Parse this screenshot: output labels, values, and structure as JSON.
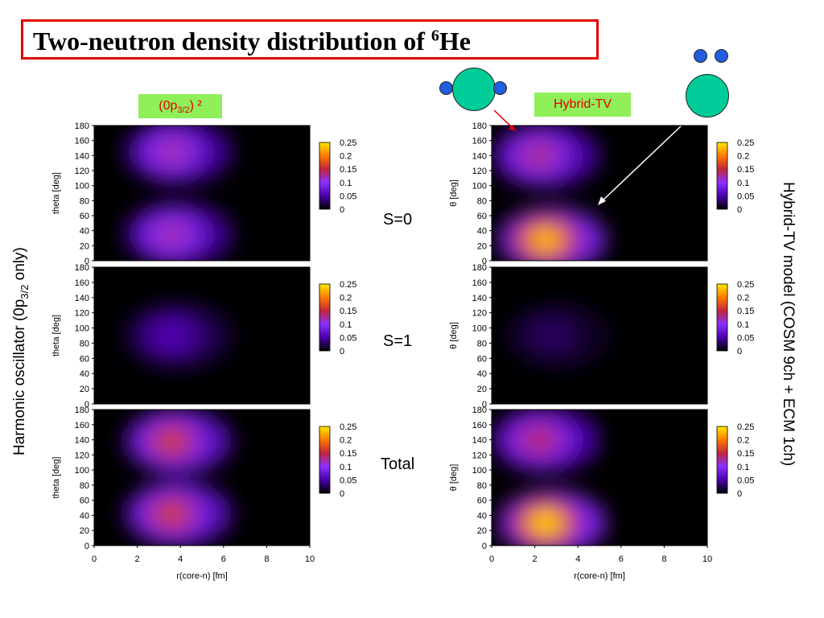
{
  "title": {
    "text": "Two-neutron density distribution of ",
    "superscript": "6",
    "element": "He"
  },
  "tags": {
    "left": {
      "prefix": "(0p",
      "sub": "3/2",
      "suffix": ") ²"
    },
    "right": "Hybrid-TV"
  },
  "state_labels": [
    "S=0",
    "S=1",
    "Total"
  ],
  "side_labels": {
    "left": {
      "prefix": "Harmonic oscillator (0p",
      "sub": "3/2",
      "suffix": " only)"
    },
    "right": "Hybrid-TV model (COSM 9ch + ECM 1ch)"
  },
  "colors": {
    "title_border": "#e00000",
    "tag_bg": "#8ff05a",
    "tag_text": "#e00000",
    "core": "#00cc99",
    "neutron": "#1f5fe0"
  },
  "chart_data": [
    {
      "type": "heatmap",
      "panel": "left-S=0",
      "ylabel": "theta [deg]",
      "xlim": [
        0,
        10
      ],
      "ylim": [
        0,
        180
      ],
      "yticks": [
        "180",
        "160",
        "140",
        "120",
        "100",
        "80",
        "60",
        "40",
        "20",
        "0"
      ],
      "xticks": [],
      "colorbar": {
        "ticks": [
          "0.25",
          "0.2",
          "0.15",
          "0.1",
          "0.05",
          "0"
        ],
        "range": [
          0,
          0.25
        ]
      },
      "peaks": [
        {
          "r": 3.6,
          "theta": 35,
          "value": 0.13
        },
        {
          "r": 3.6,
          "theta": 145,
          "value": 0.13
        }
      ]
    },
    {
      "type": "heatmap",
      "panel": "left-S=1",
      "ylabel": "theta [deg]",
      "xlim": [
        0,
        10
      ],
      "ylim": [
        0,
        180
      ],
      "yticks": [
        "180",
        "160",
        "140",
        "120",
        "100",
        "80",
        "60",
        "40",
        "20",
        "0"
      ],
      "xticks": [],
      "colorbar": {
        "ticks": [
          "0.25",
          "0.2",
          "0.15",
          "0.1",
          "0.05",
          "0"
        ],
        "range": [
          0,
          0.25
        ]
      },
      "peaks": [
        {
          "r": 3.6,
          "theta": 90,
          "value": 0.06
        }
      ]
    },
    {
      "type": "heatmap",
      "panel": "left-Total",
      "ylabel": "theta [deg]",
      "xlabel": "r(core-n) [fm]",
      "xlim": [
        0,
        10
      ],
      "ylim": [
        0,
        180
      ],
      "yticks": [
        "180",
        "160",
        "140",
        "120",
        "100",
        "80",
        "60",
        "40",
        "20",
        "0"
      ],
      "xticks": [
        "0",
        "2",
        "4",
        "6",
        "8",
        "10"
      ],
      "colorbar": {
        "ticks": [
          "0.25",
          "0.2",
          "0.15",
          "0.1",
          "0.05",
          "0"
        ],
        "range": [
          0,
          0.25
        ]
      },
      "peaks": [
        {
          "r": 3.6,
          "theta": 42,
          "value": 0.17
        },
        {
          "r": 3.6,
          "theta": 138,
          "value": 0.17
        }
      ]
    },
    {
      "type": "heatmap",
      "panel": "right-S=0",
      "ylabel": "θ [deg]",
      "xlim": [
        0,
        10
      ],
      "ylim": [
        0,
        180
      ],
      "yticks": [
        "180",
        "160",
        "140",
        "120",
        "100",
        "80",
        "60",
        "40",
        "20",
        "0"
      ],
      "xticks": [],
      "colorbar": {
        "ticks": [
          "0.25",
          "0.2",
          "0.15",
          "0.1",
          "0.05",
          "0"
        ],
        "range": [
          0,
          0.25
        ]
      },
      "peaks": [
        {
          "r": 2.5,
          "theta": 28,
          "value": 0.24
        },
        {
          "r": 2.2,
          "theta": 140,
          "value": 0.14
        }
      ]
    },
    {
      "type": "heatmap",
      "panel": "right-S=1",
      "ylabel": "θ [deg]",
      "xlim": [
        0,
        10
      ],
      "ylim": [
        0,
        180
      ],
      "yticks": [
        "180",
        "160",
        "140",
        "120",
        "100",
        "80",
        "60",
        "40",
        "20",
        "0"
      ],
      "xticks": [],
      "colorbar": {
        "ticks": [
          "0.25",
          "0.2",
          "0.15",
          "0.1",
          "0.05",
          "0"
        ],
        "range": [
          0,
          0.25
        ]
      },
      "peaks": [
        {
          "r": 2.8,
          "theta": 90,
          "value": 0.03
        }
      ]
    },
    {
      "type": "heatmap",
      "panel": "right-Total",
      "ylabel": "θ [deg]",
      "xlabel": "r(core-n) [fm]",
      "xlim": [
        0,
        10
      ],
      "ylim": [
        0,
        180
      ],
      "yticks": [
        "180",
        "160",
        "140",
        "120",
        "100",
        "80",
        "60",
        "40",
        "20",
        "0"
      ],
      "xticks": [
        "0",
        "2",
        "4",
        "6",
        "8",
        "10"
      ],
      "colorbar": {
        "ticks": [
          "0.25",
          "0.2",
          "0.15",
          "0.1",
          "0.05",
          "0"
        ],
        "range": [
          0,
          0.25
        ]
      },
      "peaks": [
        {
          "r": 2.5,
          "theta": 30,
          "value": 0.25
        },
        {
          "r": 2.2,
          "theta": 140,
          "value": 0.15
        }
      ]
    }
  ]
}
